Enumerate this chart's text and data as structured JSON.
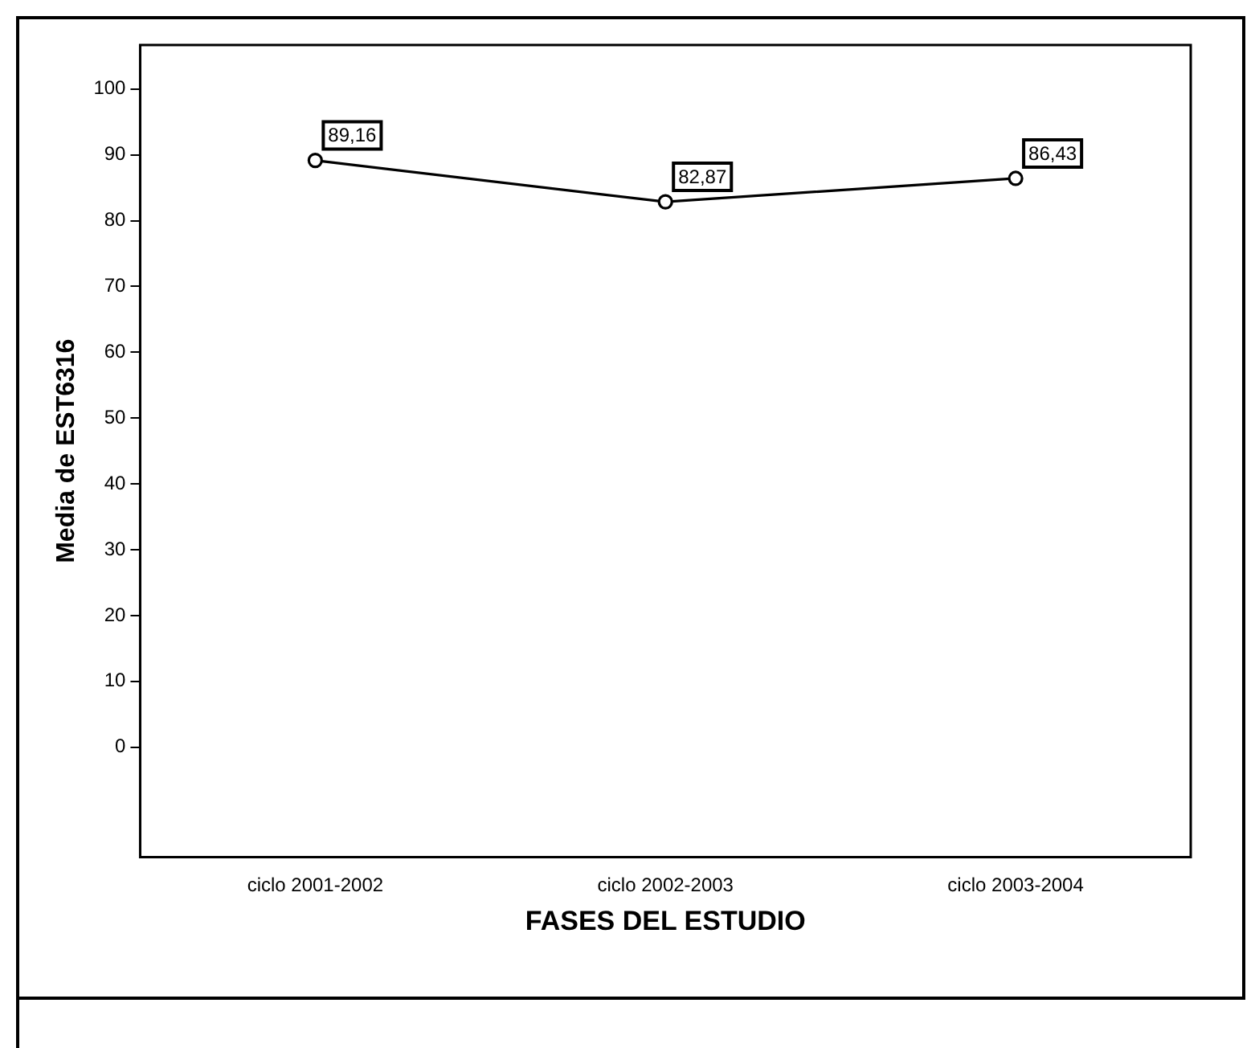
{
  "chart_data": {
    "type": "line",
    "xlabel": "FASES DEL ESTUDIO",
    "ylabel": "Media de EST6316",
    "categories": [
      "ciclo 2001-2002",
      "ciclo 2002-2003",
      "ciclo 2003-2004"
    ],
    "values": [
      89.16,
      82.87,
      86.43
    ],
    "value_labels": [
      "89,16",
      "82,87",
      "86,43"
    ],
    "color": "#000000",
    "marker": "circle",
    "line_style": "solid",
    "ylim": [
      -16.7,
      106.7
    ],
    "yticks": [
      0,
      10,
      20,
      30,
      40,
      50,
      60,
      70,
      80,
      90,
      100
    ],
    "legend": false
  }
}
